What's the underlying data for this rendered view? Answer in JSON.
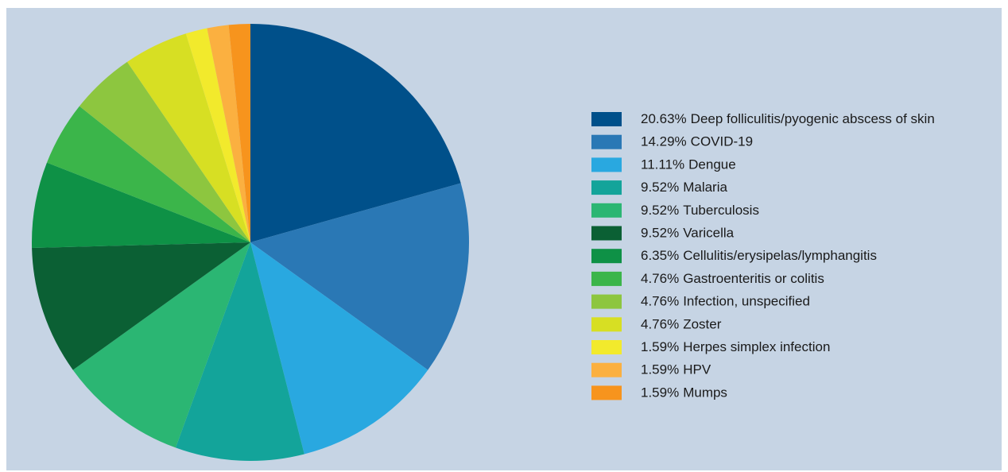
{
  "chart_data": {
    "type": "pie",
    "categories": [
      "Deep folliculitis/pyogenic abscess of skin",
      "COVID-19",
      "Dengue",
      "Malaria",
      "Tuberculosis",
      "Varicella",
      "Cellulitis/erysipelas/lymphangitis",
      "Gastroenteritis or colitis",
      "Infection, unspecified",
      "Zoster",
      "Herpes simplex infection",
      "HPV",
      "Mumps"
    ],
    "values": [
      20.63,
      14.29,
      11.11,
      9.52,
      9.52,
      9.52,
      6.35,
      4.76,
      4.76,
      4.76,
      1.59,
      1.59,
      1.59
    ],
    "value_labels": [
      "20.63%",
      "14.29%",
      "11.11%",
      "9.52%",
      "9.52%",
      "9.52%",
      "6.35%",
      "4.76%",
      "4.76%",
      "4.76%",
      "1.59%",
      "1.59%",
      "1.59%"
    ],
    "colors": [
      "#00508a",
      "#2a78b5",
      "#29a8e0",
      "#13a49a",
      "#2bb673",
      "#0b6034",
      "#0e9146",
      "#3bb54a",
      "#8dc63f",
      "#d7df23",
      "#f2ea2c",
      "#fbb040",
      "#f7941d"
    ],
    "legend": "right"
  }
}
